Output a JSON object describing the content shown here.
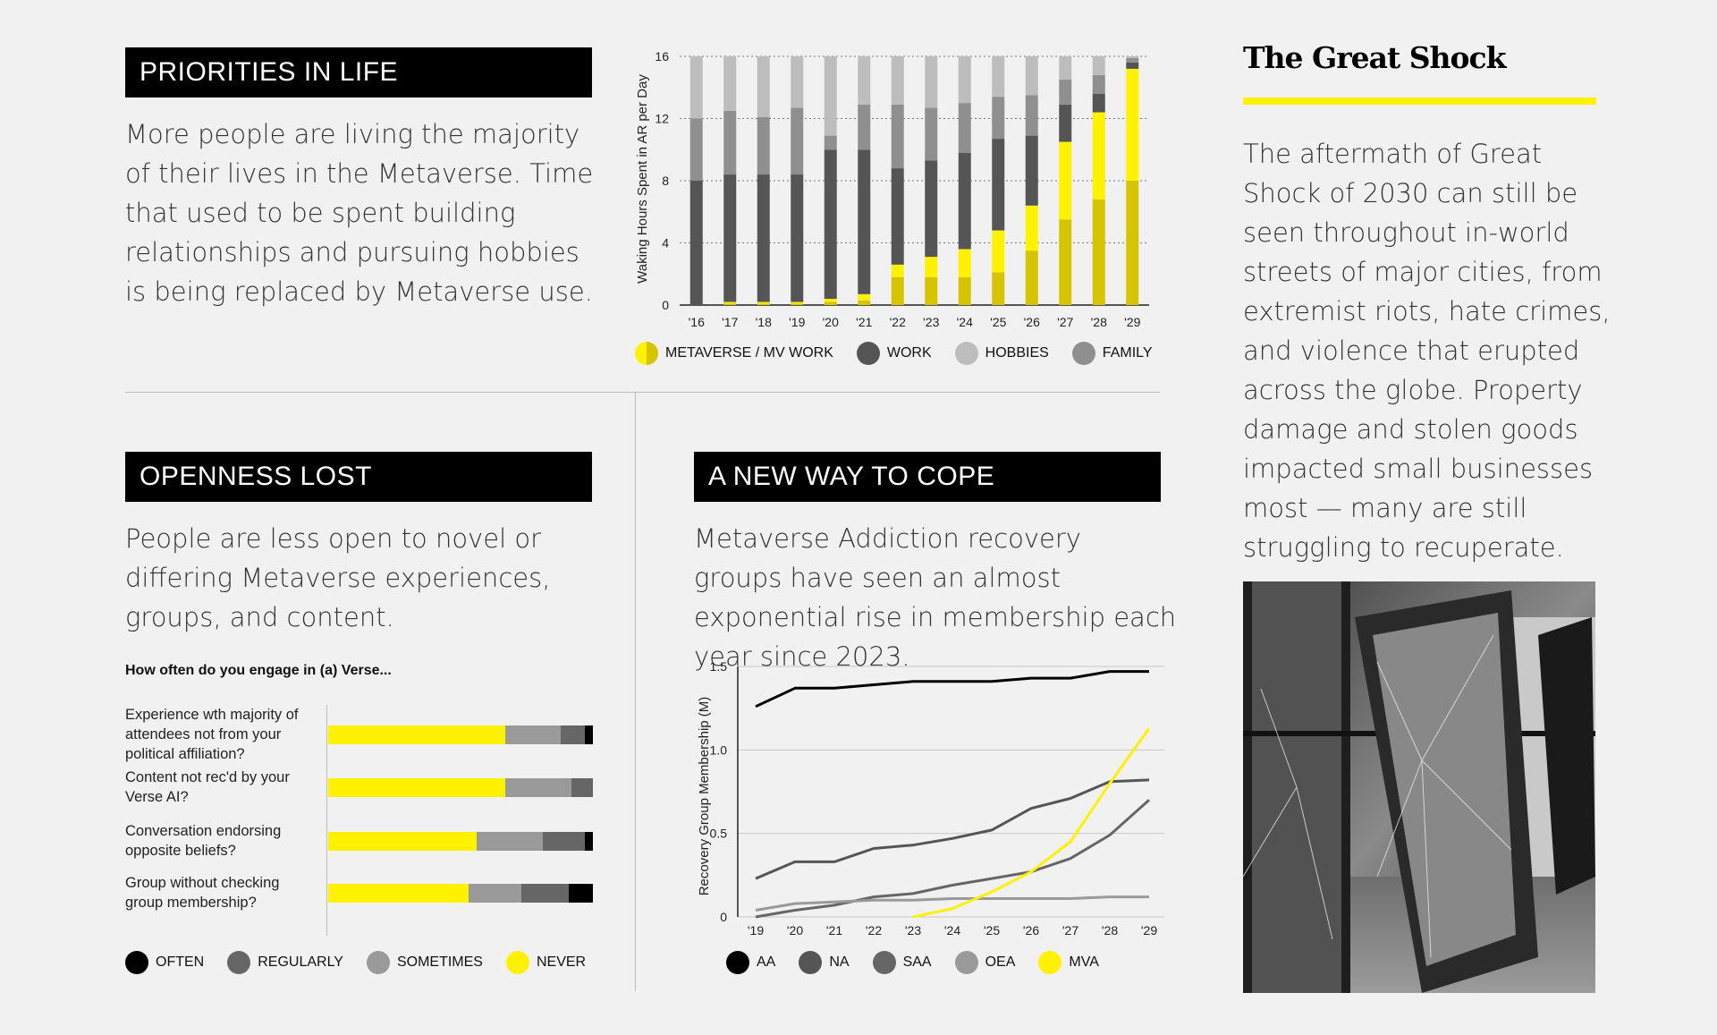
{
  "priorities": {
    "title": "PRIORITIES IN LIFE",
    "body": "More people are living the majority of their lives in the Metaverse. Time that used to be spent building relationships and pursuing hobbies is being replaced by Metaverse use."
  },
  "openness": {
    "title": "OPENNESS LOST",
    "body": "People are less open to novel or differing Metaverse experiences, groups, and content."
  },
  "cope": {
    "title": "A NEW WAY TO COPE",
    "body": "Metaverse Addiction recovery groups have seen an almost exponential rise in membership each year since 2023."
  },
  "great_shock": {
    "title": "The Great Shock",
    "body": "The aftermath of Great Shock of 2030 can still be seen throughout in-world streets of major cities, from extremist riots, hate crimes, and violence that erupted across the globe. Property damage and stolen goods impacted small businesses most — many are still struggling to recuperate."
  },
  "colors": {
    "yellow": "#fff200",
    "dark_yellow": "#d6c400",
    "work": "#555555",
    "hobbies": "#bdbdbd",
    "family": "#8f8f8f"
  },
  "chart_data": [
    {
      "type": "bar",
      "stacked": true,
      "ylabel": "Waking Hours Spent in AR per Day",
      "ylim": [
        0,
        16
      ],
      "yticks": [
        0,
        4,
        8,
        12,
        16
      ],
      "grid": true,
      "categories": [
        "'16",
        "'17",
        "'18",
        "'19",
        "'20",
        "'21",
        "'22",
        "'23",
        "'24",
        "'25",
        "'26",
        "'27",
        "'28",
        "'29"
      ],
      "series": [
        {
          "name": "METAVERSE / MV WORK",
          "component": "metaverse",
          "color": "#d6c400",
          "values": [
            0,
            0.1,
            0.1,
            0.1,
            0.2,
            0.3,
            1.8,
            1.8,
            1.8,
            2.1,
            3.5,
            5.5,
            6.8,
            8.0
          ]
        },
        {
          "name": "METAVERSE / MV WORK",
          "component": "mv_work",
          "color": "#fff200",
          "values": [
            0,
            0.1,
            0.1,
            0.1,
            0.2,
            0.4,
            0.8,
            1.3,
            1.8,
            2.7,
            2.9,
            5.0,
            5.6,
            7.2
          ]
        },
        {
          "name": "WORK",
          "color": "#555555",
          "values": [
            8.0,
            8.2,
            8.2,
            8.2,
            9.6,
            9.3,
            6.2,
            6.2,
            6.2,
            5.9,
            4.5,
            2.4,
            1.2,
            0.4
          ]
        },
        {
          "name": "FAMILY",
          "color": "#8f8f8f",
          "values": [
            4.0,
            4.1,
            3.7,
            4.3,
            0.9,
            2.9,
            4.1,
            3.4,
            3.2,
            2.7,
            2.6,
            1.6,
            1.2,
            0.3
          ]
        },
        {
          "name": "HOBBIES",
          "color": "#bdbdbd",
          "values": [
            4.0,
            3.5,
            3.9,
            3.3,
            5.1,
            3.1,
            3.1,
            3.3,
            3.0,
            2.6,
            2.5,
            1.5,
            1.2,
            0.1
          ]
        }
      ],
      "legend_placement": "bottom",
      "legend": [
        {
          "label": "METAVERSE / MV WORK",
          "color": "#fff200",
          "color2": "#d6c400"
        },
        {
          "label": "WORK",
          "color": "#555555"
        },
        {
          "label": "HOBBIES",
          "color": "#bdbdbd"
        },
        {
          "label": "FAMILY",
          "color": "#8f8f8f"
        }
      ]
    },
    {
      "type": "bar",
      "orientation": "horizontal",
      "stacked": true,
      "normalized": true,
      "title": "How often do you engage in (a) Verse...",
      "categories": [
        "Experience wth majority of attendees not from your political affiliation?",
        "Content not rec'd by your Verse AI?",
        "Conversation endorsing opposite beliefs?",
        "Group without checking group membership?"
      ],
      "series": [
        {
          "name": "NEVER",
          "color": "#fff200",
          "values": [
            67,
            67,
            56,
            53
          ]
        },
        {
          "name": "SOMETIMES",
          "color": "#9a9a9a",
          "values": [
            21,
            25,
            25,
            20
          ]
        },
        {
          "name": "REGULARLY",
          "color": "#666666",
          "values": [
            9,
            8,
            16,
            18
          ]
        },
        {
          "name": "OFTEN",
          "color": "#000000",
          "values": [
            3,
            0,
            3,
            9
          ]
        }
      ],
      "legend_placement": "bottom",
      "legend": [
        {
          "label": "OFTEN",
          "color": "#000000"
        },
        {
          "label": "REGULARLY",
          "color": "#666666"
        },
        {
          "label": "SOMETIMES",
          "color": "#9a9a9a"
        },
        {
          "label": "NEVER",
          "color": "#fff200"
        }
      ]
    },
    {
      "type": "line",
      "ylabel": "Recovery Group Membership (M)",
      "ylim": [
        0,
        1.5
      ],
      "yticks": [
        "0",
        "0.5",
        "1.0",
        "1.5"
      ],
      "x": [
        "'19",
        "'20",
        "'21",
        "'22",
        "'23",
        "'24",
        "'25",
        "'26",
        "'27",
        "'28",
        "'29"
      ],
      "grid": true,
      "series": [
        {
          "name": "AA",
          "color": "#000000",
          "values": [
            1.26,
            1.37,
            1.37,
            1.39,
            1.41,
            1.41,
            1.41,
            1.43,
            1.43,
            1.47,
            1.47
          ]
        },
        {
          "name": "NA",
          "color": "#555555",
          "values": [
            0.23,
            0.33,
            0.33,
            0.41,
            0.43,
            0.47,
            0.52,
            0.65,
            0.71,
            0.81,
            0.82
          ]
        },
        {
          "name": "SAA",
          "color": "#666666",
          "values": [
            0.0,
            0.04,
            0.07,
            0.12,
            0.14,
            0.19,
            0.23,
            0.27,
            0.35,
            0.49,
            0.7
          ]
        },
        {
          "name": "OEA",
          "color": "#9a9a9a",
          "values": [
            0.04,
            0.08,
            0.09,
            0.1,
            0.1,
            0.11,
            0.11,
            0.11,
            0.11,
            0.12,
            0.12
          ]
        },
        {
          "name": "MVA",
          "color": "#fff200",
          "values": [
            null,
            null,
            null,
            null,
            0.0,
            0.05,
            0.15,
            0.27,
            0.45,
            0.8,
            1.13
          ]
        }
      ],
      "legend_placement": "bottom",
      "legend": [
        {
          "label": "AA",
          "color": "#000000"
        },
        {
          "label": "NA",
          "color": "#555555"
        },
        {
          "label": "SAA",
          "color": "#666666"
        },
        {
          "label": "OEA",
          "color": "#9a9a9a"
        },
        {
          "label": "MVA",
          "color": "#fff200"
        }
      ]
    }
  ]
}
